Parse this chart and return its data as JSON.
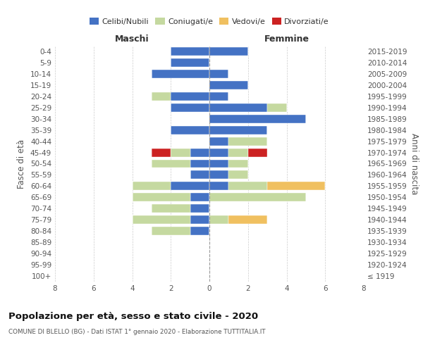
{
  "age_groups": [
    "100+",
    "95-99",
    "90-94",
    "85-89",
    "80-84",
    "75-79",
    "70-74",
    "65-69",
    "60-64",
    "55-59",
    "50-54",
    "45-49",
    "40-44",
    "35-39",
    "30-34",
    "25-29",
    "20-24",
    "15-19",
    "10-14",
    "5-9",
    "0-4"
  ],
  "birth_years": [
    "≤ 1919",
    "1920-1924",
    "1925-1929",
    "1930-1934",
    "1935-1939",
    "1940-1944",
    "1945-1949",
    "1950-1954",
    "1955-1959",
    "1960-1964",
    "1965-1969",
    "1970-1974",
    "1975-1979",
    "1980-1984",
    "1985-1989",
    "1990-1994",
    "1995-1999",
    "2000-2004",
    "2005-2009",
    "2010-2014",
    "2015-2019"
  ],
  "maschi_celibi": [
    0,
    0,
    0,
    0,
    1,
    1,
    1,
    1,
    2,
    1,
    1,
    1,
    0,
    2,
    0,
    2,
    2,
    0,
    3,
    2,
    2
  ],
  "maschi_coniugati": [
    0,
    0,
    0,
    0,
    2,
    3,
    2,
    3,
    2,
    0,
    2,
    1,
    0,
    0,
    0,
    0,
    1,
    0,
    0,
    0,
    0
  ],
  "maschi_vedovi": [
    0,
    0,
    0,
    0,
    0,
    0,
    0,
    0,
    0,
    0,
    0,
    0,
    0,
    0,
    0,
    0,
    0,
    0,
    0,
    0,
    0
  ],
  "maschi_divorziati": [
    0,
    0,
    0,
    0,
    0,
    0,
    0,
    0,
    0,
    0,
    0,
    1,
    0,
    0,
    0,
    0,
    0,
    0,
    0,
    0,
    0
  ],
  "femmine_nubili": [
    0,
    0,
    0,
    0,
    0,
    0,
    0,
    0,
    1,
    1,
    1,
    1,
    1,
    3,
    5,
    3,
    1,
    2,
    1,
    0,
    2
  ],
  "femmine_coniugate": [
    0,
    0,
    0,
    0,
    0,
    1,
    0,
    5,
    2,
    1,
    1,
    1,
    2,
    0,
    0,
    1,
    0,
    0,
    0,
    0,
    0
  ],
  "femmine_vedove": [
    0,
    0,
    0,
    0,
    0,
    2,
    0,
    0,
    3,
    0,
    0,
    0,
    0,
    0,
    0,
    0,
    0,
    0,
    0,
    0,
    0
  ],
  "femmine_divorziate": [
    0,
    0,
    0,
    0,
    0,
    0,
    0,
    0,
    0,
    0,
    0,
    1,
    0,
    0,
    0,
    0,
    0,
    0,
    0,
    0,
    0
  ],
  "color_celibi": "#4472c4",
  "color_coniugati": "#c5d9a0",
  "color_vedovi": "#f0c060",
  "color_divorziati": "#cc2222",
  "title": "Popolazione per età, sesso e stato civile - 2020",
  "subtitle": "COMUNE DI BLELLO (BG) - Dati ISTAT 1° gennaio 2020 - Elaborazione TUTTITALIA.IT",
  "ylabel_left": "Fasce di età",
  "ylabel_right": "Anni di nascita",
  "label_maschi": "Maschi",
  "label_femmine": "Femmine",
  "legend_labels": [
    "Celibi/Nubili",
    "Coniugati/e",
    "Vedovi/e",
    "Divorziati/e"
  ],
  "xlim": 8,
  "xtick_step": 2
}
